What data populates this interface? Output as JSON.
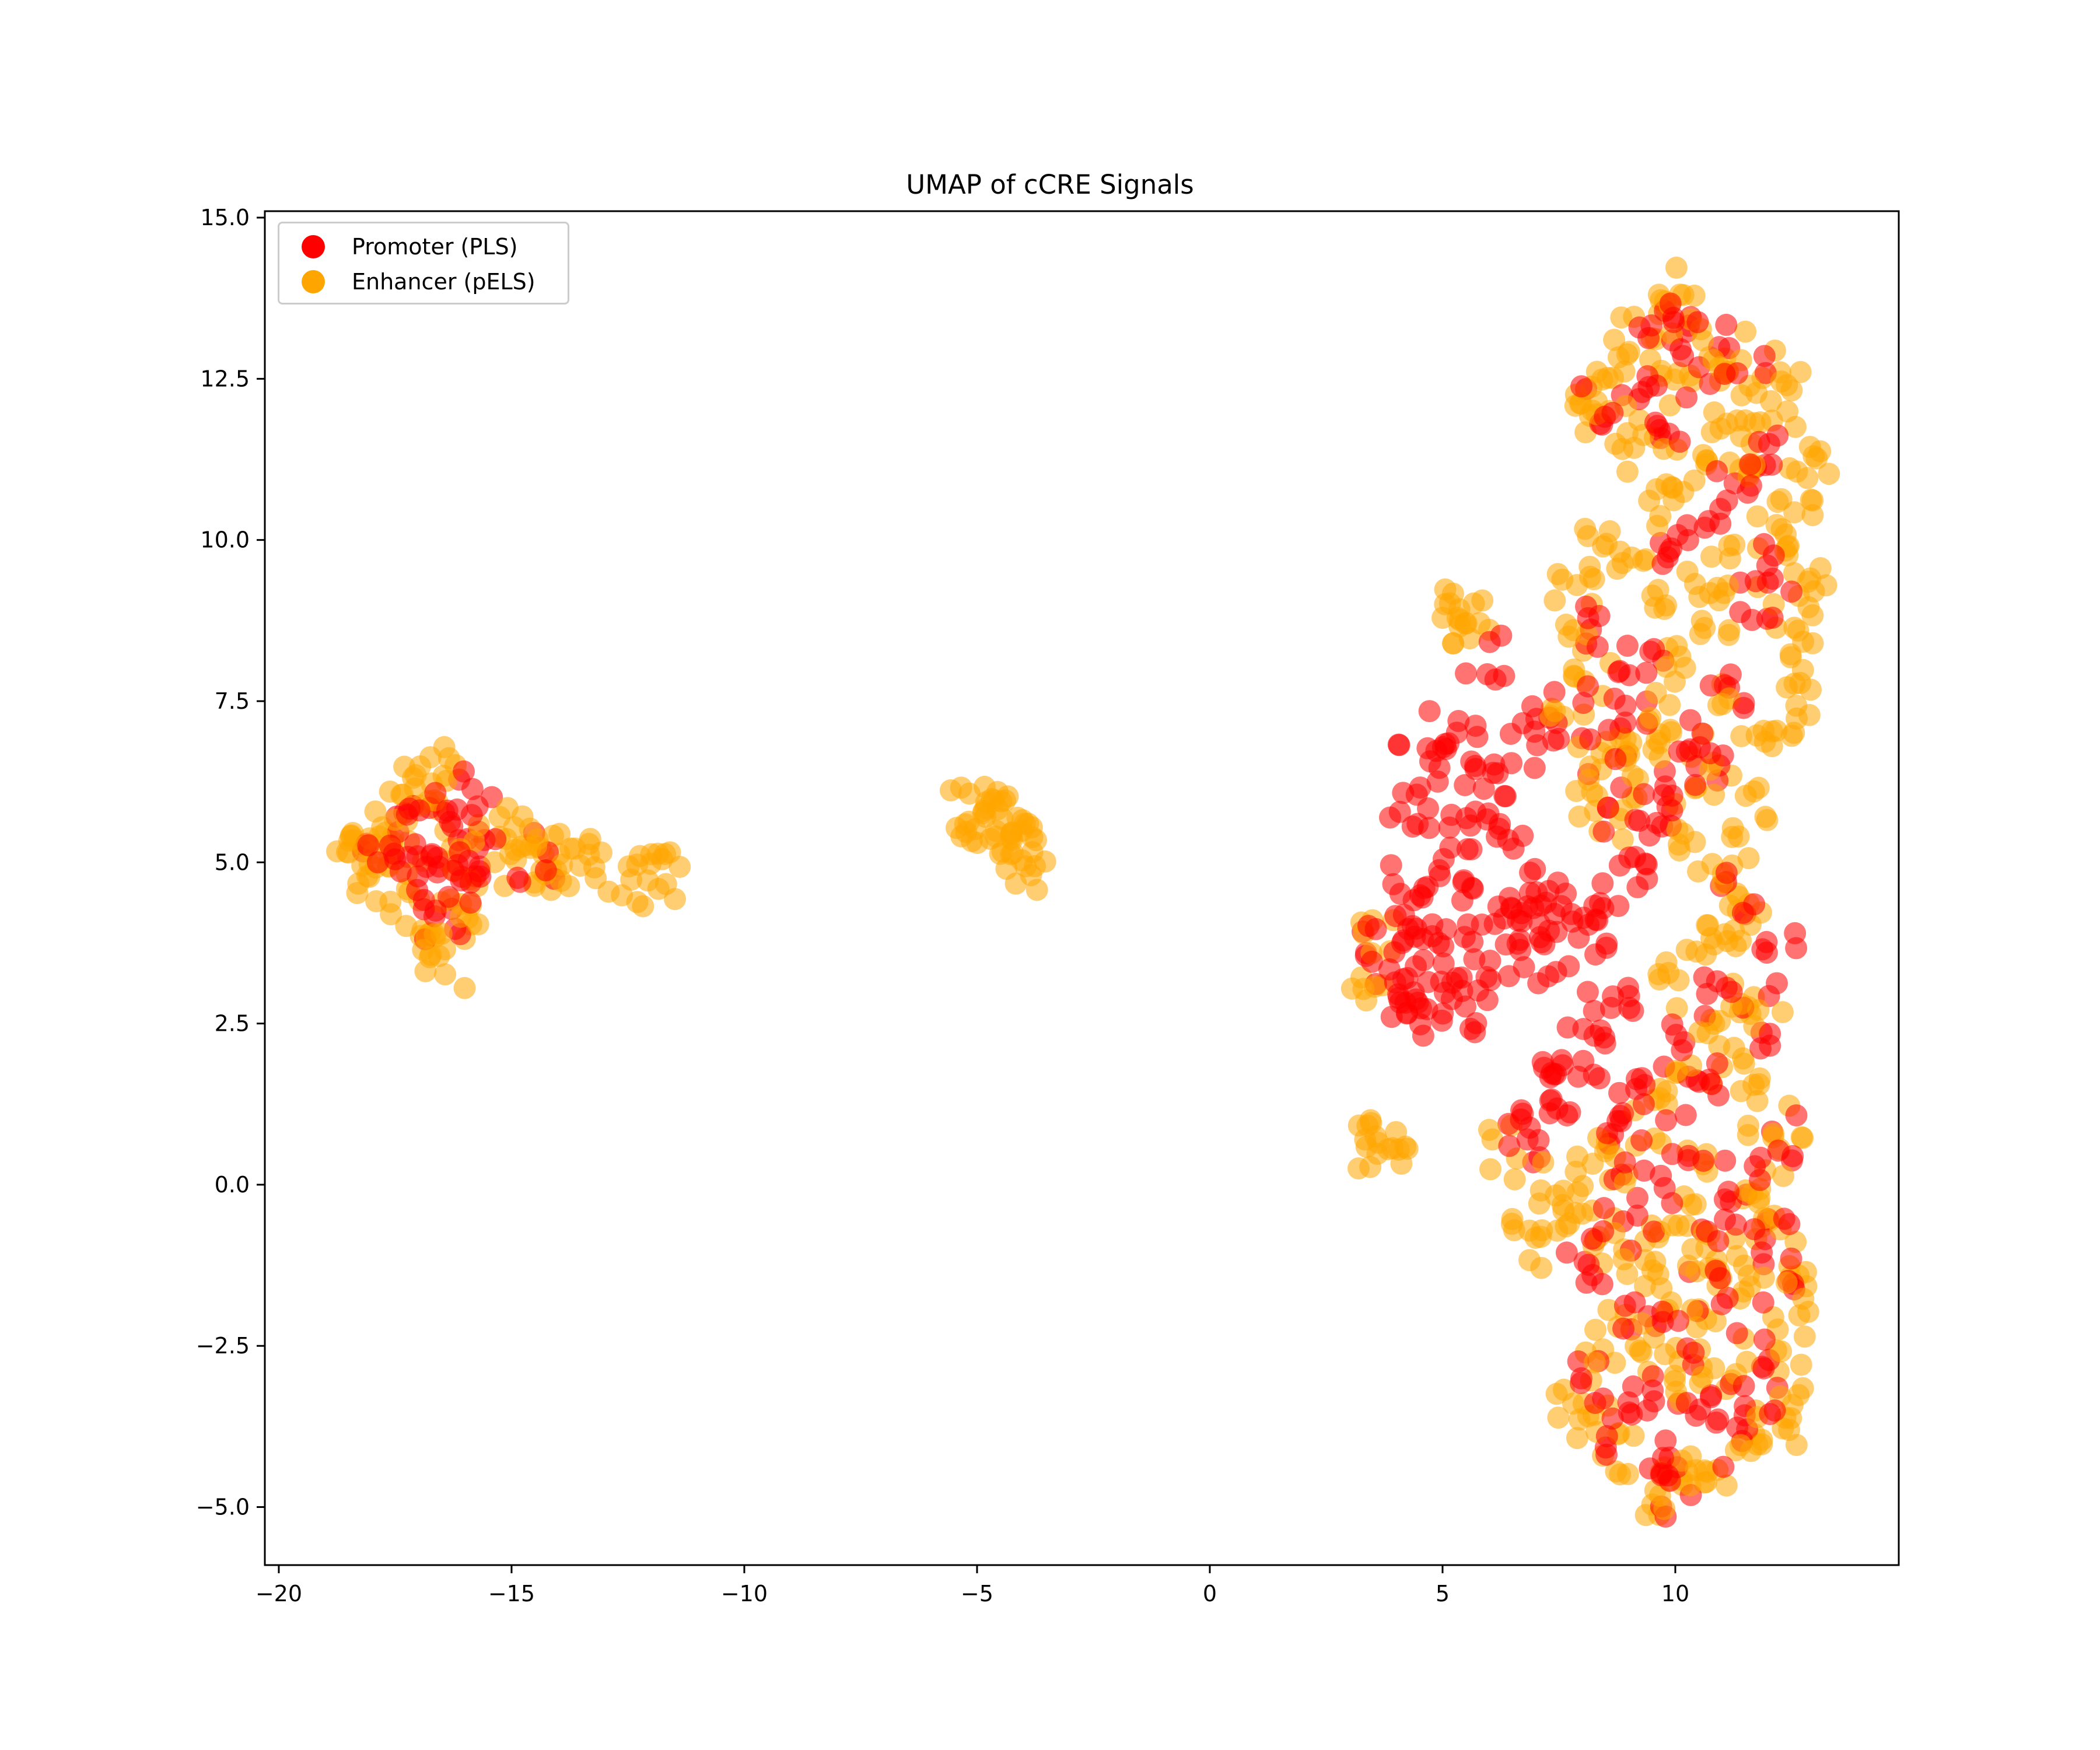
{
  "chart_data": {
    "type": "scatter",
    "title": "UMAP of cCRE Signals",
    "xlabel": "",
    "ylabel": "",
    "xlim": [
      -20.3,
      14.8
    ],
    "ylim": [
      -5.9,
      15.1
    ],
    "xticks": [
      -20,
      -15,
      -10,
      -5,
      0,
      5,
      10
    ],
    "xtick_labels": [
      "−20",
      "−15",
      "−10",
      "−5",
      "0",
      "5",
      "10"
    ],
    "yticks": [
      -5.0,
      -2.5,
      0.0,
      2.5,
      5.0,
      7.5,
      10.0,
      12.5,
      15.0
    ],
    "ytick_labels": [
      "−5.0",
      "−2.5",
      "0.0",
      "2.5",
      "5.0",
      "7.5",
      "10.0",
      "12.5",
      "15.0"
    ],
    "grid": false,
    "legend_position": "top-left",
    "series": [
      {
        "name": "Promoter (PLS)",
        "color": "#ff0000",
        "points": [
          [
            -17.5,
            5.4
          ],
          [
            -17.0,
            5.0
          ],
          [
            -16.6,
            4.7
          ],
          [
            -16.3,
            4.6
          ],
          [
            -16.0,
            5.0
          ],
          [
            -15.8,
            5.6
          ],
          [
            -16.8,
            5.8
          ],
          [
            -16.2,
            6.0
          ],
          [
            -17.8,
            5.2
          ],
          [
            -16.5,
            4.2
          ],
          [
            -15.5,
            5.2
          ],
          [
            -14.5,
            5.1
          ],
          [
            4.5,
            6.5
          ],
          [
            5.0,
            7.0
          ],
          [
            5.5,
            6.8
          ],
          [
            4.2,
            5.8
          ],
          [
            4.8,
            5.5
          ],
          [
            5.6,
            5.9
          ],
          [
            6.0,
            6.2
          ],
          [
            4.3,
            4.8
          ],
          [
            5.0,
            4.6
          ],
          [
            5.8,
            5.0
          ],
          [
            6.5,
            5.2
          ],
          [
            6.8,
            4.6
          ],
          [
            4.0,
            4.0
          ],
          [
            4.6,
            3.8
          ],
          [
            5.3,
            4.1
          ],
          [
            6.2,
            4.3
          ],
          [
            3.9,
            3.4
          ],
          [
            4.4,
            3.1
          ],
          [
            5.0,
            2.9
          ],
          [
            5.7,
            3.3
          ],
          [
            6.4,
            3.6
          ],
          [
            4.8,
            2.6
          ],
          [
            5.5,
            2.8
          ],
          [
            3.7,
            3.8
          ],
          [
            4.1,
            2.6
          ],
          [
            6.9,
            3.9
          ],
          [
            7.3,
            4.4
          ],
          [
            7.8,
            4.1
          ],
          [
            8.2,
            3.9
          ],
          [
            8.6,
            4.3
          ],
          [
            7.5,
            3.4
          ],
          [
            6.6,
            6.8
          ],
          [
            7.2,
            7.1
          ],
          [
            7.8,
            7.3
          ],
          [
            5.9,
            8.2
          ],
          [
            7.0,
            1.3
          ],
          [
            7.3,
            0.9
          ],
          [
            6.8,
            0.7
          ],
          [
            7.6,
            1.6
          ],
          [
            8.0,
            2.1
          ],
          [
            8.4,
            2.6
          ],
          [
            8.8,
            3.1
          ],
          [
            9.2,
            4.8
          ],
          [
            9.6,
            5.4
          ],
          [
            9.9,
            6.0
          ],
          [
            8.9,
            5.9
          ],
          [
            8.5,
            6.8
          ],
          [
            9.0,
            7.6
          ],
          [
            9.4,
            8.3
          ],
          [
            8.3,
            8.6
          ],
          [
            10.4,
            7.0
          ],
          [
            10.8,
            6.5
          ],
          [
            11.2,
            7.8
          ],
          [
            11.7,
            8.9
          ],
          [
            12.1,
            9.5
          ],
          [
            10.0,
            9.8
          ],
          [
            10.6,
            10.3
          ],
          [
            11.3,
            11.0
          ],
          [
            12.0,
            11.5
          ],
          [
            9.8,
            11.8
          ],
          [
            10.5,
            12.6
          ],
          [
            9.2,
            12.3
          ],
          [
            8.4,
            12.0
          ],
          [
            11.5,
            12.9
          ],
          [
            9.6,
            13.3
          ],
          [
            10.2,
            13.6
          ],
          [
            9.0,
            0.4
          ],
          [
            9.5,
            -0.3
          ],
          [
            10.2,
            0.8
          ],
          [
            10.8,
            1.5
          ],
          [
            11.4,
            0.2
          ],
          [
            12.0,
            -0.8
          ],
          [
            8.6,
            -0.6
          ],
          [
            8.1,
            -1.2
          ],
          [
            9.3,
            -1.8
          ],
          [
            10.0,
            -2.4
          ],
          [
            10.7,
            -1.6
          ],
          [
            11.6,
            -2.7
          ],
          [
            9.1,
            -3.2
          ],
          [
            8.6,
            -3.8
          ],
          [
            9.7,
            -4.3
          ],
          [
            10.4,
            -3.6
          ],
          [
            11.3,
            -4.0
          ],
          [
            10.0,
            -4.7
          ],
          [
            8.2,
            -3.0
          ],
          [
            11.9,
            -3.4
          ],
          [
            12.3,
            -1.4
          ],
          [
            11.8,
            2.5
          ],
          [
            12.2,
            3.5
          ],
          [
            11.4,
            4.6
          ],
          [
            10.9,
            3.0
          ],
          [
            9.9,
            2.1
          ],
          [
            9.3,
            1.4
          ],
          [
            8.5,
            1.0
          ],
          [
            12.2,
            0.8
          ],
          [
            11.0,
            -0.6
          ]
        ]
      },
      {
        "name": "Enhancer (pELS)",
        "color": "#ffa500",
        "points": [
          [
            -18.4,
            5.4
          ],
          [
            -18.0,
            5.0
          ],
          [
            -17.7,
            5.7
          ],
          [
            -17.3,
            4.6
          ],
          [
            -17.0,
            6.1
          ],
          [
            -16.9,
            4.1
          ],
          [
            -16.6,
            3.7
          ],
          [
            -16.4,
            3.5
          ],
          [
            -16.1,
            3.9
          ],
          [
            -15.9,
            4.5
          ],
          [
            -15.2,
            5.4
          ],
          [
            -14.9,
            5.6
          ],
          [
            -14.7,
            4.8
          ],
          [
            -14.2,
            5.0
          ],
          [
            -13.9,
            5.0
          ],
          [
            -13.6,
            5.0
          ],
          [
            -13.3,
            4.95
          ],
          [
            -12.2,
            4.8
          ],
          [
            -12.0,
            4.8
          ],
          [
            -11.8,
            4.75
          ],
          [
            -17.9,
            4.8
          ],
          [
            -18.2,
            5.6
          ],
          [
            -16.7,
            6.3
          ],
          [
            -16.3,
            6.4
          ],
          [
            -17.4,
            5.2
          ],
          [
            -16.0,
            5.4
          ],
          [
            -5.2,
            5.7
          ],
          [
            -5.0,
            5.8
          ],
          [
            -4.8,
            5.75
          ],
          [
            -4.6,
            5.65
          ],
          [
            -4.4,
            5.55
          ],
          [
            -4.25,
            5.4
          ],
          [
            -4.1,
            5.25
          ],
          [
            -4.0,
            5.1
          ],
          [
            -3.95,
            5.0
          ],
          [
            5.4,
            8.8
          ],
          [
            5.5,
            9.0
          ],
          [
            5.6,
            8.7
          ],
          [
            3.6,
            0.7
          ],
          [
            3.7,
            0.9
          ],
          [
            3.8,
            0.75
          ],
          [
            3.5,
            3.1
          ],
          [
            3.6,
            3.7
          ],
          [
            6.4,
            0.5
          ],
          [
            6.7,
            -0.4
          ],
          [
            7.2,
            -0.9
          ],
          [
            7.8,
            -0.5
          ],
          [
            8.2,
            0.3
          ],
          [
            8.8,
            -0.9
          ],
          [
            9.4,
            -1.2
          ],
          [
            9.9,
            -0.5
          ],
          [
            10.4,
            0.1
          ],
          [
            10.9,
            -1.0
          ],
          [
            11.4,
            -1.4
          ],
          [
            11.9,
            -0.2
          ],
          [
            12.3,
            0.4
          ],
          [
            12.5,
            -1.8
          ],
          [
            12.6,
            -2.4
          ],
          [
            12.4,
            -3.3
          ],
          [
            12.2,
            -3.8
          ],
          [
            11.7,
            -3.9
          ],
          [
            11.0,
            -4.3
          ],
          [
            10.5,
            -4.5
          ],
          [
            9.9,
            -4.6
          ],
          [
            9.4,
            -4.9
          ],
          [
            8.8,
            -4.2
          ],
          [
            8.3,
            -3.6
          ],
          [
            7.9,
            -3.2
          ],
          [
            8.5,
            -2.6
          ],
          [
            9.0,
            -2.2
          ],
          [
            9.6,
            -2.8
          ],
          [
            10.2,
            -3.0
          ],
          [
            10.8,
            -2.2
          ],
          [
            11.2,
            -2.8
          ],
          [
            9.8,
            -1.6
          ],
          [
            10.6,
            -1.2
          ],
          [
            11.6,
            -0.4
          ],
          [
            12.0,
            1.2
          ],
          [
            11.7,
            1.9
          ],
          [
            11.2,
            2.5
          ],
          [
            10.6,
            2.0
          ],
          [
            10.0,
            1.5
          ],
          [
            9.4,
            0.9
          ],
          [
            8.7,
            0.3
          ],
          [
            7.6,
            0.0
          ],
          [
            9.8,
            3.0
          ],
          [
            10.4,
            3.8
          ],
          [
            10.9,
            4.6
          ],
          [
            10.2,
            5.5
          ],
          [
            9.4,
            6.3
          ],
          [
            8.8,
            7.0
          ],
          [
            8.2,
            7.8
          ],
          [
            7.9,
            8.6
          ],
          [
            7.8,
            9.4
          ],
          [
            8.4,
            9.8
          ],
          [
            9.0,
            9.5
          ],
          [
            9.6,
            8.8
          ],
          [
            10.2,
            8.2
          ],
          [
            10.9,
            8.8
          ],
          [
            11.5,
            9.6
          ],
          [
            12.2,
            10.2
          ],
          [
            12.7,
            9.8
          ],
          [
            12.9,
            10.6
          ],
          [
            12.8,
            11.4
          ],
          [
            12.5,
            12.2
          ],
          [
            12.0,
            12.6
          ],
          [
            11.4,
            12.2
          ],
          [
            10.9,
            11.6
          ],
          [
            10.4,
            11.0
          ],
          [
            9.8,
            10.4
          ],
          [
            9.4,
            11.2
          ],
          [
            8.9,
            11.8
          ],
          [
            8.3,
            12.3
          ],
          [
            7.9,
            12.0
          ],
          [
            8.6,
            12.8
          ],
          [
            9.2,
            13.2
          ],
          [
            9.7,
            13.8
          ],
          [
            10.2,
            13.4
          ],
          [
            10.7,
            12.9
          ],
          [
            11.1,
            13.0
          ],
          [
            11.6,
            11.5
          ],
          [
            12.4,
            8.6
          ],
          [
            12.8,
            8.0
          ],
          [
            12.6,
            7.3
          ],
          [
            12.1,
            6.6
          ],
          [
            11.6,
            6.0
          ],
          [
            11.2,
            5.2
          ],
          [
            10.7,
            6.3
          ],
          [
            11.0,
            7.4
          ],
          [
            9.9,
            7.3
          ],
          [
            9.3,
            6.8
          ],
          [
            8.7,
            5.7
          ],
          [
            8.0,
            6.1
          ],
          [
            7.7,
            7.0
          ],
          [
            12.9,
            9.2
          ],
          [
            11.9,
            10.8
          ],
          [
            10.0,
            12.2
          ],
          [
            10.5,
            9.5
          ],
          [
            11.1,
            3.5
          ],
          [
            11.6,
            4.1
          ],
          [
            12.0,
            2.9
          ],
          [
            12.3,
            -1.0
          ]
        ]
      }
    ]
  }
}
